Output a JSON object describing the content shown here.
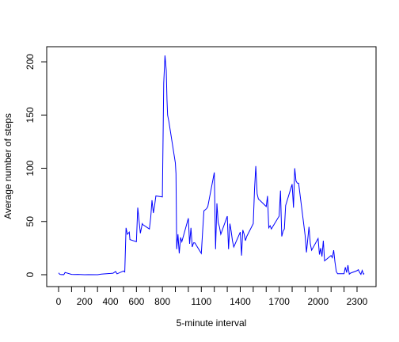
{
  "chart_data": {
    "type": "line",
    "title": "",
    "xlabel": "5-minute interval",
    "ylabel": "Average number of steps",
    "xlim": [
      0,
      2355
    ],
    "ylim": [
      0,
      206
    ],
    "x_ticks": [
      0,
      100,
      200,
      300,
      400,
      500,
      600,
      700,
      800,
      900,
      1000,
      1100,
      1200,
      1300,
      1400,
      1500,
      1600,
      1700,
      1800,
      1900,
      2000,
      2100,
      2200,
      2300
    ],
    "x_tick_labels": [
      "0",
      "",
      "200",
      "",
      "400",
      "",
      "600",
      "",
      "800",
      "",
      "",
      "1100",
      "",
      "",
      "1400",
      "",
      "",
      "1700",
      "",
      "",
      "2000",
      "",
      "",
      "2300"
    ],
    "y_ticks": [
      0,
      50,
      100,
      150,
      200
    ],
    "y_tick_labels": [
      "0",
      "50",
      "100",
      "150",
      "200"
    ],
    "grid": false,
    "line_color": "#0000ff",
    "series": [
      {
        "x": [
          0,
          10,
          20,
          30,
          40,
          50,
          100,
          120,
          150,
          200,
          230,
          300,
          330,
          400,
          420,
          440,
          450,
          500,
          510,
          520,
          530,
          545,
          550,
          600,
          610,
          620,
          630,
          645,
          650,
          700,
          710,
          720,
          730,
          740,
          750,
          800,
          810,
          820,
          830,
          835,
          840,
          850,
          900,
          905,
          910,
          920,
          930,
          940,
          950,
          1000,
          1010,
          1020,
          1030,
          1040,
          1050,
          1100,
          1110,
          1120,
          1130,
          1140,
          1150,
          1200,
          1210,
          1220,
          1230,
          1240,
          1250,
          1300,
          1310,
          1320,
          1330,
          1340,
          1350,
          1400,
          1410,
          1420,
          1430,
          1440,
          1450,
          1500,
          1510,
          1520,
          1530,
          1540,
          1550,
          1600,
          1610,
          1620,
          1630,
          1640,
          1650,
          1700,
          1710,
          1720,
          1730,
          1740,
          1750,
          1800,
          1810,
          1820,
          1830,
          1840,
          1850,
          1900,
          1910,
          1920,
          1930,
          1940,
          1950,
          2000,
          2010,
          2020,
          2030,
          2040,
          2050,
          2100,
          2110,
          2120,
          2130,
          2140,
          2150,
          2200,
          2210,
          2220,
          2230,
          2240,
          2250,
          2300,
          2310,
          2320,
          2330,
          2340,
          2350,
          2355
        ],
        "y": [
          1.7,
          0.3,
          0.1,
          0.2,
          0.0,
          2.1,
          0.3,
          0.2,
          0.3,
          0.0,
          0.1,
          0.0,
          0.6,
          1.2,
          1.4,
          3.0,
          0.8,
          3.5,
          2.6,
          44.0,
          38.0,
          40.0,
          33.0,
          31.0,
          63.0,
          51.0,
          39.0,
          48.0,
          47.0,
          43.0,
          54.0,
          70.0,
          58.0,
          65.0,
          74.0,
          73.0,
          180.0,
          206.0,
          192.0,
          165.0,
          150.0,
          144.0,
          105.0,
          95.0,
          24.0,
          38.0,
          20.0,
          35.0,
          31.0,
          53.0,
          29.0,
          44.0,
          26.0,
          30.0,
          30.0,
          20.0,
          40.0,
          60.0,
          61.0,
          62.0,
          64.0,
          96.0,
          24.0,
          67.0,
          49.0,
          45.0,
          38.0,
          55.0,
          24.0,
          48.0,
          41.0,
          32.0,
          26.0,
          40.0,
          18.0,
          42.0,
          38.0,
          32.0,
          36.0,
          48.0,
          80.0,
          102.0,
          76.0,
          71.0,
          70.0,
          64.0,
          74.0,
          44.0,
          46.0,
          43.0,
          45.0,
          55.0,
          79.0,
          36.0,
          41.0,
          43.0,
          65.0,
          85.0,
          63.0,
          100.0,
          88.0,
          86.0,
          86.0,
          37.0,
          21.0,
          33.0,
          45.0,
          29.0,
          23.0,
          34.0,
          19.0,
          25.0,
          17.0,
          32.0,
          13.0,
          18.0,
          16.0,
          23.0,
          12.0,
          3.0,
          1.0,
          1.0,
          7.0,
          2.0,
          9.0,
          0.5,
          1.5,
          3.8,
          4.7,
          2.1,
          0.3,
          4.0,
          0.5,
          1.1
        ]
      }
    ]
  }
}
